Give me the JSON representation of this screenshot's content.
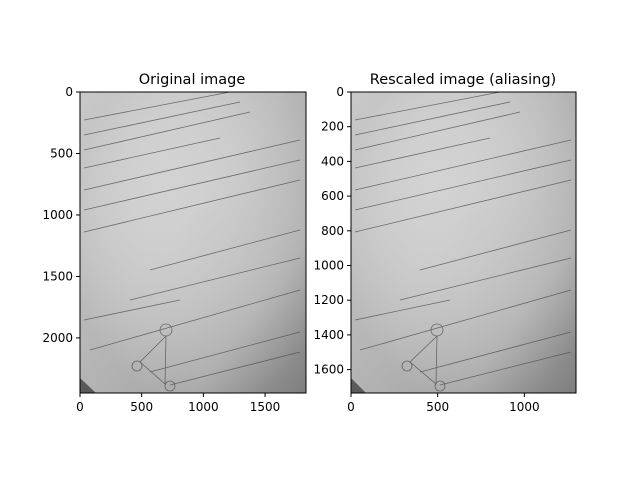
{
  "chart_data": [
    {
      "type": "image",
      "title": "Original image",
      "xticks": [
        0,
        500,
        1000,
        1500
      ],
      "yticks": [
        0,
        500,
        1000,
        1500,
        2000
      ],
      "xlim": [
        0,
        1832
      ],
      "ylim": [
        2448,
        0
      ],
      "image": {
        "content": "grayscale photograph of handwritten notes on lined paper (diagonal text, small graph diagram at bottom)",
        "colors": {
          "light": "#e4e4e4",
          "mid": "#bdbdbd",
          "dark": "#7f7f7f"
        }
      }
    },
    {
      "type": "image",
      "title": "Rescaled image (aliasing)",
      "xticks": [
        0,
        500,
        1000
      ],
      "yticks": [
        0,
        200,
        400,
        600,
        800,
        1000,
        1200,
        1400,
        1600
      ],
      "xlim": [
        0,
        1298
      ],
      "ylim": [
        1735,
        0
      ],
      "image": {
        "content": "same grayscale photograph of handwritten notes, rescaled",
        "colors": {
          "light": "#e4e4e4",
          "mid": "#bdbdbd",
          "dark": "#7f7f7f"
        }
      }
    }
  ]
}
